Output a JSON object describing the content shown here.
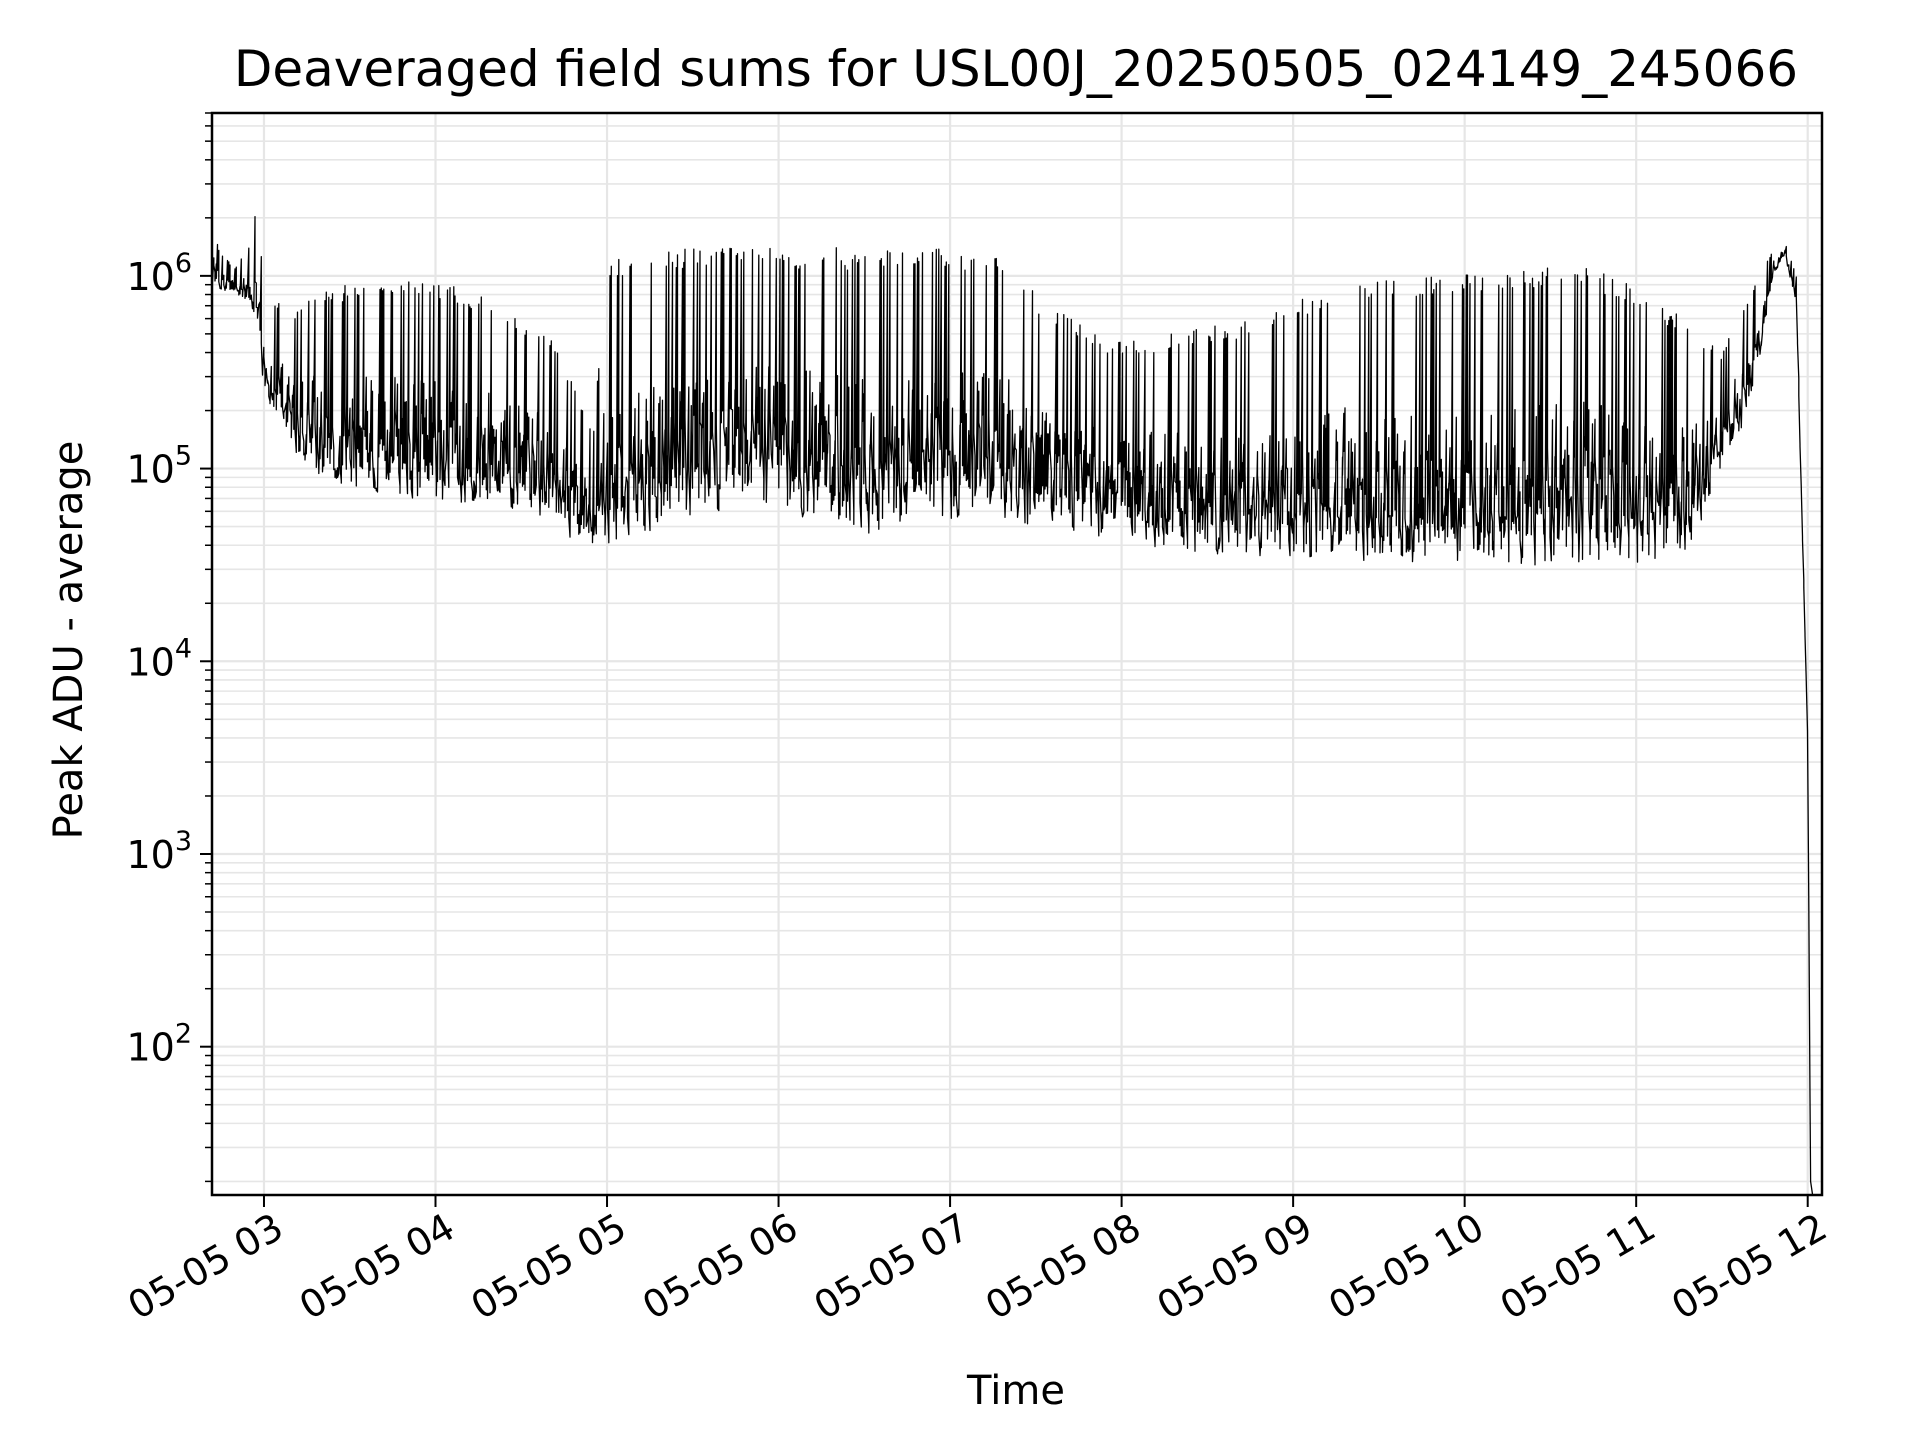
{
  "chart_data": {
    "type": "line",
    "title": "Deaveraged field sums for USL00J_20250505_024149_245066",
    "xlabel": "Time",
    "ylabel": "Peak ADU - average",
    "y_scale": "log",
    "ylim": [
      17,
      7000000
    ],
    "xlim": [
      "2025-05-05 02:41:49",
      "2025-05-05 12:05:00"
    ],
    "grid": true,
    "line_color": "#000000",
    "grid_color": "#e6e6e6",
    "x_ticks": [
      {
        "label": "05-05 03",
        "t": "2025-05-05 03:00"
      },
      {
        "label": "05-05 04",
        "t": "2025-05-05 04:00"
      },
      {
        "label": "05-05 05",
        "t": "2025-05-05 05:00"
      },
      {
        "label": "05-05 06",
        "t": "2025-05-05 06:00"
      },
      {
        "label": "05-05 07",
        "t": "2025-05-05 07:00"
      },
      {
        "label": "05-05 08",
        "t": "2025-05-05 08:00"
      },
      {
        "label": "05-05 09",
        "t": "2025-05-05 09:00"
      },
      {
        "label": "05-05 10",
        "t": "2025-05-05 10:00"
      },
      {
        "label": "05-05 11",
        "t": "2025-05-05 11:00"
      },
      {
        "label": "05-05 12",
        "t": "2025-05-05 12:00"
      }
    ],
    "y_ticks": [
      {
        "base": "10",
        "exp": "2",
        "value": 100
      },
      {
        "base": "10",
        "exp": "3",
        "value": 1000
      },
      {
        "base": "10",
        "exp": "4",
        "value": 10000
      },
      {
        "base": "10",
        "exp": "5",
        "value": 100000
      },
      {
        "base": "10",
        "exp": "6",
        "value": 1000000
      }
    ],
    "series": [
      {
        "x": [
          "2025-05-05 02:42",
          "2025-05-05 02:45",
          "2025-05-05 02:50",
          "2025-05-05 02:55",
          "2025-05-05 02:58",
          "2025-05-05 03:00",
          "2025-05-05 03:10",
          "2025-05-05 03:20",
          "2025-05-05 03:30",
          "2025-05-05 03:40",
          "2025-05-05 03:50",
          "2025-05-05 04:00",
          "2025-05-05 04:10",
          "2025-05-05 04:20",
          "2025-05-05 04:30",
          "2025-05-05 04:40",
          "2025-05-05 04:50",
          "2025-05-05 04:55",
          "2025-05-05 05:00",
          "2025-05-05 05:10",
          "2025-05-05 05:20",
          "2025-05-05 05:30",
          "2025-05-05 05:40",
          "2025-05-05 05:50",
          "2025-05-05 06:00",
          "2025-05-05 06:10",
          "2025-05-05 06:20",
          "2025-05-05 06:30",
          "2025-05-05 06:40",
          "2025-05-05 06:50",
          "2025-05-05 07:00",
          "2025-05-05 07:10",
          "2025-05-05 07:20",
          "2025-05-05 07:30",
          "2025-05-05 07:40",
          "2025-05-05 07:50",
          "2025-05-05 08:00",
          "2025-05-05 08:15",
          "2025-05-05 08:30",
          "2025-05-05 08:45",
          "2025-05-05 09:00",
          "2025-05-05 09:15",
          "2025-05-05 09:30",
          "2025-05-05 09:45",
          "2025-05-05 10:00",
          "2025-05-05 10:15",
          "2025-05-05 10:30",
          "2025-05-05 10:45",
          "2025-05-05 11:00",
          "2025-05-05 11:10",
          "2025-05-05 11:20",
          "2025-05-05 11:30",
          "2025-05-05 11:40",
          "2025-05-05 11:48",
          "2025-05-05 11:52",
          "2025-05-05 11:56",
          "2025-05-05 12:00",
          "2025-05-05 12:01"
        ],
        "high": [
          1700000,
          1300000,
          1100000,
          1500000,
          2500000,
          800000,
          650000,
          850000,
          900000,
          950000,
          1000000,
          950000,
          850000,
          750000,
          600000,
          500000,
          250000,
          150000,
          1300000,
          1300000,
          1400000,
          1400000,
          1400000,
          1400000,
          1400000,
          1400000,
          1400000,
          1400000,
          1400000,
          1500000,
          1300000,
          1300000,
          1300000,
          800000,
          650000,
          500000,
          450000,
          500000,
          550000,
          600000,
          700000,
          1000000,
          1000000,
          1000000,
          1100000,
          1100000,
          1100000,
          1100000,
          900000,
          700000,
          550000,
          400000,
          800000,
          1400000,
          1500000,
          1000000,
          4000,
          20
        ],
        "low": [
          900000,
          850000,
          800000,
          700000,
          550000,
          250000,
          120000,
          90000,
          80000,
          75000,
          70000,
          65000,
          65000,
          65000,
          60000,
          55000,
          40000,
          38000,
          40000,
          45000,
          50000,
          55000,
          60000,
          60000,
          60000,
          55000,
          50000,
          45000,
          45000,
          50000,
          55000,
          55000,
          55000,
          50000,
          48000,
          45000,
          42000,
          38000,
          36000,
          35000,
          35000,
          34000,
          33000,
          32000,
          32000,
          31000,
          31000,
          31000,
          30000,
          32000,
          40000,
          100000,
          200000,
          1000000,
          1300000,
          700000,
          4000,
          20
        ]
      }
    ]
  }
}
